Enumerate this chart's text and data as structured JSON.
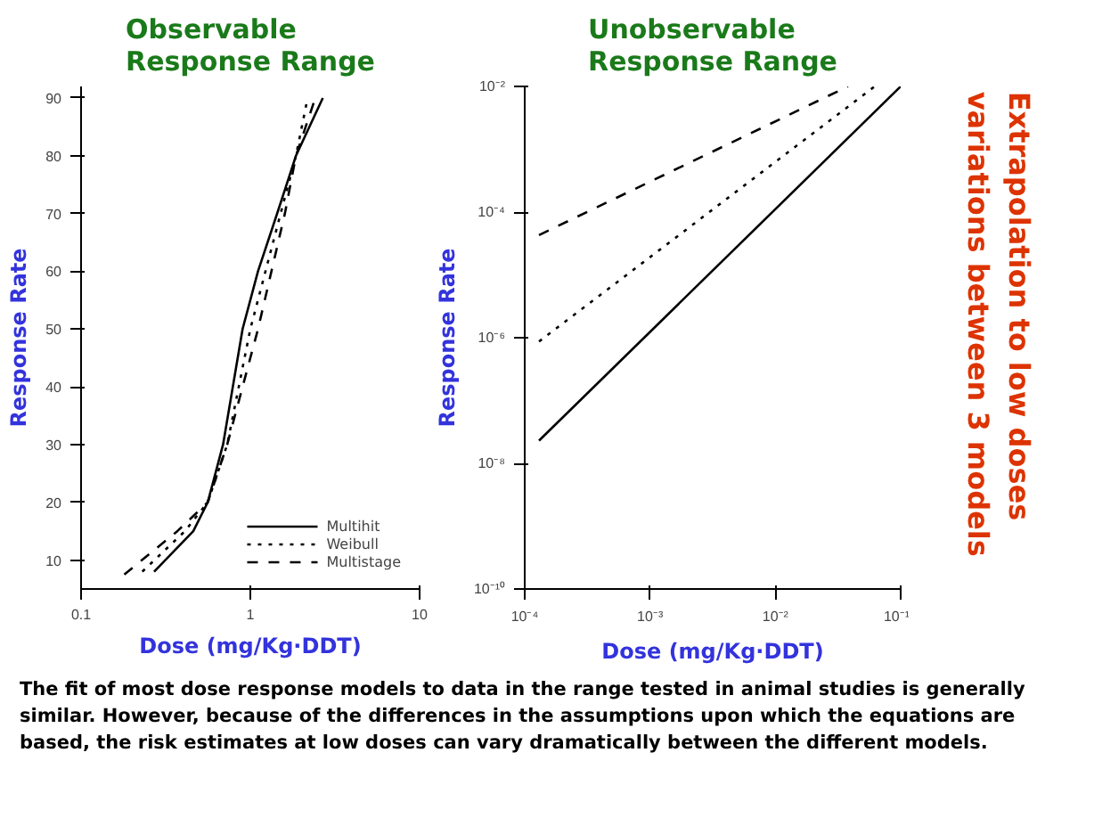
{
  "chart_data": [
    {
      "type": "line",
      "title": "Observable\nResponse Range",
      "xlabel": "Dose (mg/Kg·DDT)",
      "ylabel": "Response Rate",
      "log": "x",
      "xlim": [
        0.1,
        10
      ],
      "ylim": [
        5,
        92
      ],
      "xticks": [
        0.1,
        1,
        10
      ],
      "yticks": [
        10,
        20,
        30,
        40,
        50,
        60,
        70,
        80,
        90
      ],
      "grid": false,
      "legend": "bottom right",
      "marker": "none",
      "series": [
        {
          "name": "Multihit",
          "color": "#000000",
          "line_style": "solid",
          "x": [
            0.27,
            0.46,
            0.56,
            0.69,
            0.9,
            1.11,
            1.44,
            1.86,
            2.68
          ],
          "values": [
            8,
            15,
            20,
            30,
            50,
            60,
            70,
            80,
            90
          ]
        },
        {
          "name": "Weibull",
          "color": "#000000",
          "line_style": "dotted",
          "x": [
            0.23,
            0.41,
            0.56,
            0.73,
            1.0,
            1.51,
            1.86,
            2.18
          ],
          "values": [
            8,
            15,
            20,
            30,
            50,
            70,
            80,
            90
          ]
        },
        {
          "name": "Multistage",
          "color": "#000000",
          "line_style": "dashed",
          "x": [
            0.18,
            0.37,
            0.56,
            0.73,
            1.11,
            1.6,
            1.86,
            2.42
          ],
          "values": [
            7.5,
            15,
            20,
            30,
            50,
            70,
            80,
            90
          ]
        }
      ]
    },
    {
      "type": "line",
      "title": "Unobservable\nResponse Range",
      "xlabel": "Dose (mg/Kg·DDT)",
      "ylabel": "Response Rate",
      "log": "xy",
      "xlim": [
        0.0001,
        0.1
      ],
      "ylim": [
        1e-10,
        0.01
      ],
      "xticks": [
        {
          "value": 0.0001,
          "label": "10⁻⁴"
        },
        {
          "value": 0.001,
          "label": "10⁻³"
        },
        {
          "value": 0.01,
          "label": "10⁻²"
        },
        {
          "value": 0.1,
          "label": "10⁻¹"
        }
      ],
      "yticks": [
        {
          "value": 1e-10,
          "label": "10⁻¹⁰"
        },
        {
          "value": 1e-08,
          "label": "10⁻⁸"
        },
        {
          "value": 1e-06,
          "label": "10⁻⁶"
        },
        {
          "value": 0.0001,
          "label": "10⁻⁴"
        },
        {
          "value": 0.01,
          "label": "10⁻²"
        }
      ],
      "grid": false,
      "legend": false,
      "marker": "none",
      "annotations": [
        "Extrapolation to low doses\nvariations between 3 models",
        "The fit of most dose response models to data in the range tested in animal studies is generally similar. However, because of the differences in the assumptions upon which the equations are based, the risk estimates at low doses can vary dramatically between the different models."
      ],
      "series": [
        {
          "color": "#000000",
          "line_style": "solid",
          "x": [
            0.00013,
            0.1
          ],
          "values": [
            2.3e-08,
            0.01
          ]
        },
        {
          "color": "#000000",
          "line_style": "dotted",
          "x": [
            0.00013,
            0.062
          ],
          "values": [
            8.7e-07,
            0.01
          ]
        },
        {
          "color": "#000000",
          "line_style": "dashed",
          "x": [
            0.00013,
            0.038
          ],
          "values": [
            4.3e-05,
            0.01
          ]
        }
      ]
    }
  ]
}
